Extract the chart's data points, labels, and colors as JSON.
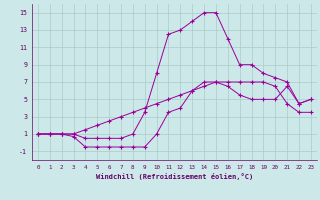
{
  "xlabel": "Windchill (Refroidissement éolien,°C)",
  "line_color": "#990099",
  "bg_color": "#cce8e8",
  "grid_color": "#aacccc",
  "xlim": [
    -0.5,
    23.5
  ],
  "ylim": [
    -2,
    16
  ],
  "xticks": [
    0,
    1,
    2,
    3,
    4,
    5,
    6,
    7,
    8,
    9,
    10,
    11,
    12,
    13,
    14,
    15,
    16,
    17,
    18,
    19,
    20,
    21,
    22,
    23
  ],
  "yticks": [
    -1,
    1,
    3,
    5,
    7,
    9,
    11,
    13,
    15
  ],
  "series": [
    {
      "x": [
        0,
        1,
        2,
        3,
        4,
        5,
        6,
        7,
        8,
        9,
        10,
        11,
        12,
        13,
        14,
        15,
        16,
        17,
        18,
        19,
        20,
        21,
        22,
        23
      ],
      "y": [
        1,
        1,
        1,
        1,
        0.5,
        0.5,
        0.5,
        0.5,
        1.0,
        3.5,
        8.0,
        12.5,
        13.0,
        14.0,
        15.0,
        15.0,
        12.0,
        9.0,
        9.0,
        8.0,
        7.5,
        7.0,
        4.5,
        5.0
      ]
    },
    {
      "x": [
        0,
        1,
        2,
        3,
        4,
        5,
        6,
        7,
        8,
        9,
        10,
        11,
        12,
        13,
        14,
        15,
        16,
        17,
        18,
        19,
        20,
        21,
        22,
        23
      ],
      "y": [
        1,
        1,
        1,
        0.7,
        -0.5,
        -0.5,
        -0.5,
        -0.5,
        -0.5,
        -0.5,
        1.0,
        3.5,
        4.0,
        6.0,
        7.0,
        7.0,
        6.5,
        5.5,
        5.0,
        5.0,
        5.0,
        6.5,
        4.5,
        5.0
      ]
    },
    {
      "x": [
        0,
        1,
        2,
        3,
        4,
        5,
        6,
        7,
        8,
        9,
        10,
        11,
        12,
        13,
        14,
        15,
        16,
        17,
        18,
        19,
        20,
        21,
        22,
        23
      ],
      "y": [
        1,
        1,
        1,
        1,
        1.5,
        2.0,
        2.5,
        3.0,
        3.5,
        4.0,
        4.5,
        5.0,
        5.5,
        6.0,
        6.5,
        7.0,
        7.0,
        7.0,
        7.0,
        7.0,
        6.5,
        4.5,
        3.5,
        3.5
      ]
    }
  ]
}
